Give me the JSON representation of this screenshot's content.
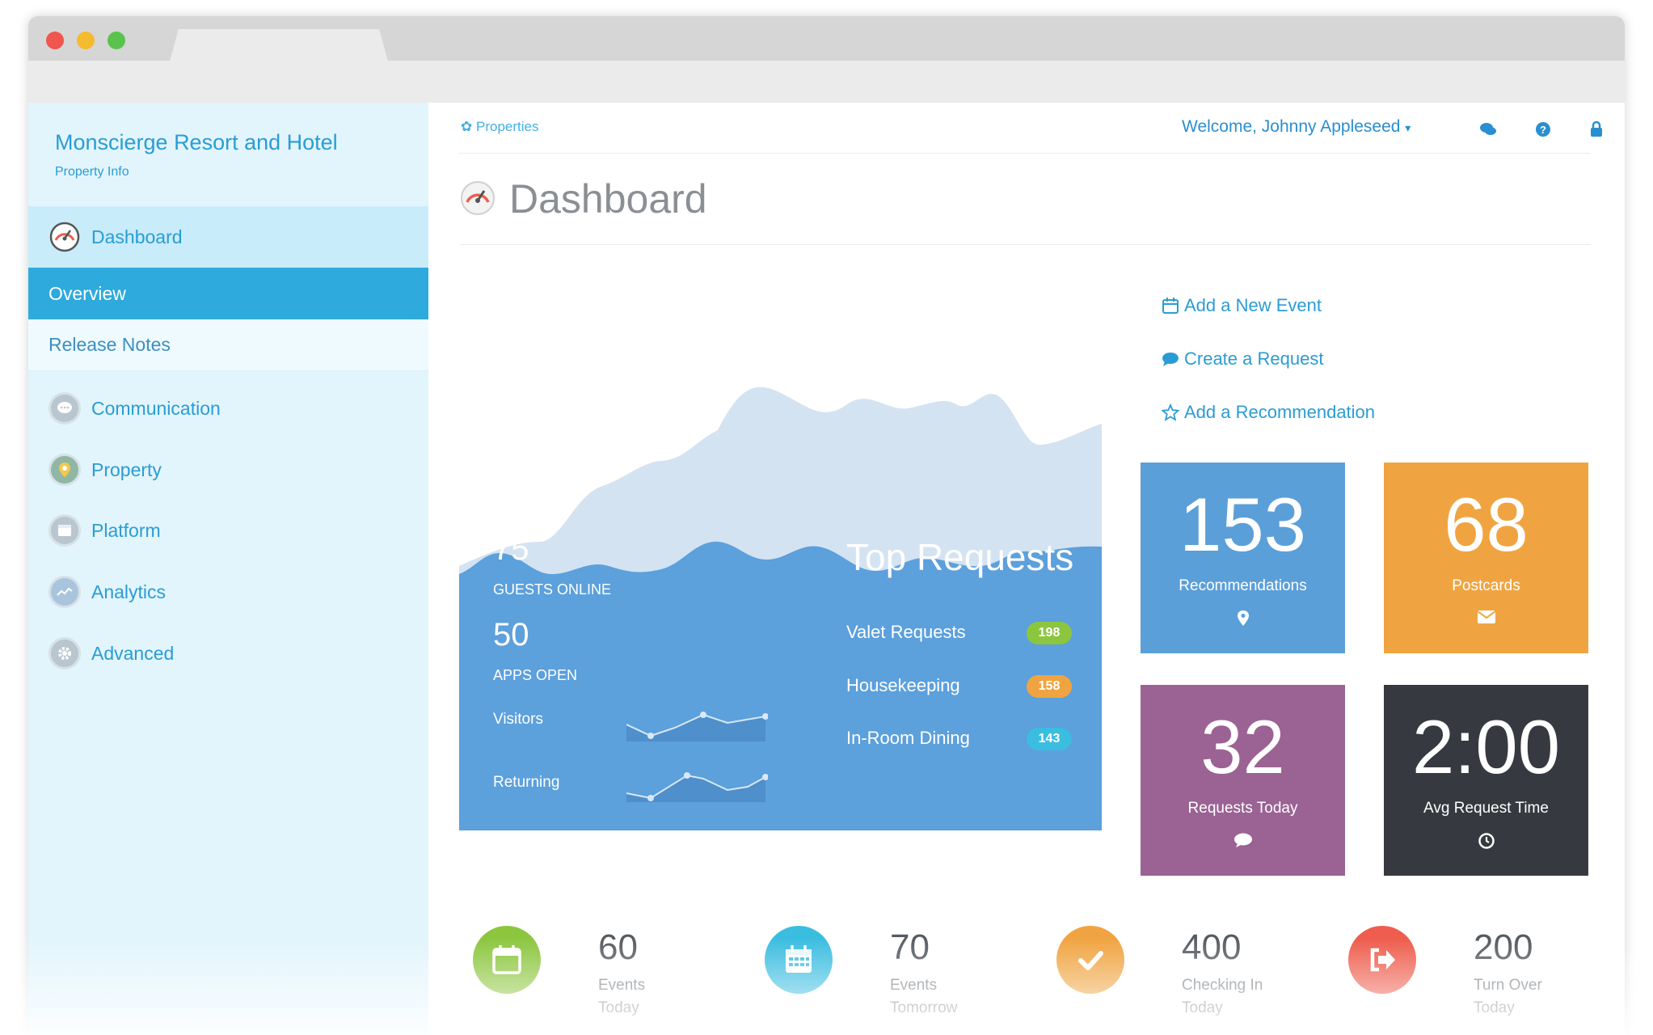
{
  "sidebar": {
    "brand_name": "Monscierge Resort and Hotel",
    "brand_sub": "Property Info",
    "items": [
      {
        "label": "Dashboard",
        "icon": "gauge-icon"
      },
      {
        "label": "Overview"
      },
      {
        "label": "Release Notes"
      },
      {
        "label": "Communication",
        "icon": "chat-icon"
      },
      {
        "label": "Property",
        "icon": "map-pin-icon"
      },
      {
        "label": "Platform",
        "icon": "window-icon"
      },
      {
        "label": "Analytics",
        "icon": "chart-icon"
      },
      {
        "label": "Advanced",
        "icon": "gear-icon"
      }
    ]
  },
  "header": {
    "breadcrumb": "Properties",
    "welcome": "Welcome, Johnny Appleseed",
    "icons": [
      "chat-icon",
      "help-icon",
      "lock-icon"
    ]
  },
  "page": {
    "title": "Dashboard"
  },
  "panel": {
    "guests_online": {
      "value": "75",
      "label": "GUESTS ONLINE"
    },
    "apps_open": {
      "value": "50",
      "label": "APPS OPEN"
    },
    "visitors_label": "Visitors",
    "returning_label": "Returning",
    "top_requests_title": "Top Requests",
    "requests": [
      {
        "label": "Valet Requests",
        "count": "198",
        "color": "#8cc63f"
      },
      {
        "label": "Housekeeping",
        "count": "158",
        "color": "#f0a441"
      },
      {
        "label": "In-Room Dining",
        "count": "143",
        "color": "#3bbde0"
      }
    ]
  },
  "actions": [
    {
      "label": "Add a New Event",
      "icon": "calendar-icon"
    },
    {
      "label": "Create a Request",
      "icon": "comment-icon"
    },
    {
      "label": "Add a Recommendation",
      "icon": "star-icon"
    }
  ],
  "tiles": [
    {
      "value": "153",
      "label": "Recommendations",
      "icon": "map-marker-icon",
      "color": "#5b9fd9"
    },
    {
      "value": "68",
      "label": "Postcards",
      "icon": "envelope-icon",
      "color": "#f0a441"
    },
    {
      "value": "32",
      "label": "Requests Today",
      "icon": "comment-icon",
      "color": "#9b6294"
    },
    {
      "value": "2:00",
      "label": "Avg Request Time",
      "icon": "clock-icon",
      "color": "#363a40"
    }
  ],
  "bottom_stats": [
    {
      "value": "60",
      "line1": "Events",
      "line2": "Today",
      "icon": "calendar-icon",
      "color": "#8cc63f"
    },
    {
      "value": "70",
      "line1": "Events",
      "line2": "Tomorrow",
      "icon": "calendar-grid-icon",
      "color": "#3bbde0"
    },
    {
      "value": "400",
      "line1": "Checking In",
      "line2": "Today",
      "icon": "check-icon",
      "color": "#f0a441"
    },
    {
      "value": "200",
      "line1": "Turn Over",
      "line2": "Today",
      "icon": "sign-out-icon",
      "color": "#ee5d4d"
    }
  ]
}
